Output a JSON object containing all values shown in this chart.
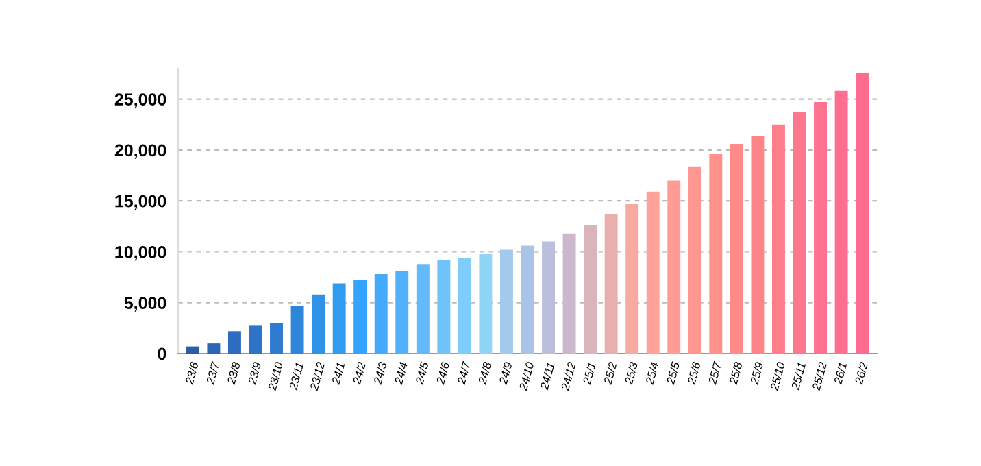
{
  "chart_data": {
    "type": "bar",
    "categories": [
      "23/6",
      "23/7",
      "23/8",
      "23/9",
      "23/10",
      "23/11",
      "23/12",
      "24/1",
      "24/2",
      "24/3",
      "24/4",
      "24/5",
      "24/6",
      "24/7",
      "24/8",
      "24/9",
      "24/10",
      "24/11",
      "24/12",
      "25/1",
      "25/2",
      "25/3",
      "25/4",
      "25/5",
      "25/6",
      "25/7",
      "25/8",
      "25/9",
      "25/10",
      "25/11",
      "25/12",
      "26/1",
      "26/2"
    ],
    "values": [
      700,
      1000,
      2200,
      2800,
      3000,
      4700,
      5800,
      6900,
      7200,
      7800,
      8100,
      8800,
      9200,
      9400,
      9800,
      10200,
      10600,
      11000,
      11800,
      12600,
      13700,
      14700,
      15900,
      17000,
      18400,
      19600,
      20600,
      21400,
      22500,
      23700,
      24700,
      25800,
      27600
    ],
    "colors": [
      "#2a5fa8",
      "#2b66b4",
      "#2c6dc0",
      "#2d74c8",
      "#2e7bd0",
      "#2e86d8",
      "#2f92e6",
      "#2f9cf0",
      "#33a3ff",
      "#45aafc",
      "#52b1fb",
      "#62bafa",
      "#70c3fa",
      "#7fcdfa",
      "#90d4f7",
      "#a3c9ec",
      "#a9c4e6",
      "#bcbfdc",
      "#cbb8cc",
      "#dab4bd",
      "#e9aeae",
      "#f6aaa2",
      "#ffa29a",
      "#ff9c94",
      "#ff9790",
      "#ff918c",
      "#ff8a88",
      "#ff8487",
      "#ff7e89",
      "#ff778c",
      "#ff7190",
      "#ff6e8e",
      "#ff6b8e"
    ],
    "ylim": [
      0,
      28000
    ],
    "yticks": [
      0,
      {
        "value": 5000,
        "label": "5,000"
      },
      {
        "value": 10000,
        "label": "10,000"
      },
      {
        "value": 15000,
        "label": "15,000"
      },
      {
        "value": 20000,
        "label": "20,000"
      },
      {
        "value": 25000,
        "label": "25,000"
      }
    ],
    "grid": "y",
    "legend": false
  }
}
